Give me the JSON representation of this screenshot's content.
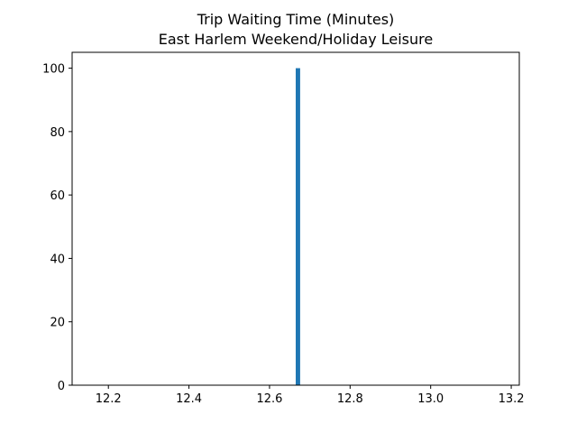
{
  "chart_data": {
    "type": "bar",
    "title": "Trip Waiting Time (Minutes)",
    "subtitle": "East Harlem Weekend/Holiday Leisure",
    "xlabel": "",
    "ylabel": "",
    "xlim": [
      12.11,
      13.22
    ],
    "ylim": [
      0,
      105
    ],
    "xticks": [
      12.2,
      12.4,
      12.6,
      12.8,
      13.0,
      13.2
    ],
    "xtick_labels": [
      "12.2",
      "12.4",
      "12.6",
      "12.8",
      "13.0",
      "13.2"
    ],
    "yticks": [
      0,
      20,
      40,
      60,
      80,
      100
    ],
    "ytick_labels": [
      "0",
      "20",
      "40",
      "60",
      "80",
      "100"
    ],
    "bars": [
      {
        "x_start": 12.665,
        "x_end": 12.676,
        "value": 100
      }
    ],
    "bar_color": "#1f77b4",
    "grid": false,
    "legend": "none"
  }
}
